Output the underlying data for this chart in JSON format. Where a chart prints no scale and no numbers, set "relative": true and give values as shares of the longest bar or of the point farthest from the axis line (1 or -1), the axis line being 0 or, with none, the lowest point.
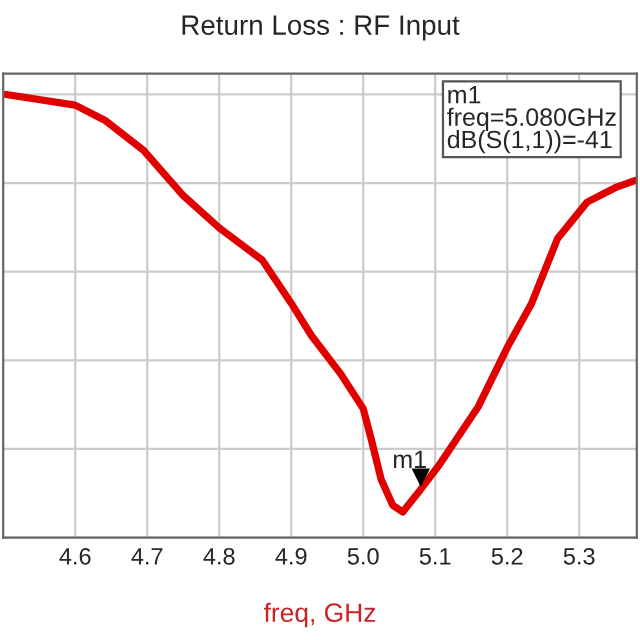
{
  "chart_data": {
    "type": "line",
    "title": "Return Loss : RF Input",
    "xlabel": "freq, GHz",
    "relative": true,
    "x": [
      4.504,
      4.6,
      4.641,
      4.695,
      4.75,
      4.8,
      4.86,
      4.9,
      4.928,
      4.969,
      5.0,
      5.011,
      5.025,
      5.041,
      5.055,
      5.079,
      5.106,
      5.16,
      5.201,
      5.234,
      5.27,
      5.311,
      5.352,
      5.378
    ],
    "series": [
      {
        "color": "#e00000",
        "values": [
          1.0,
          0.976,
          0.942,
          0.874,
          0.772,
          0.699,
          0.626,
          0.529,
          0.456,
          0.369,
          0.291,
          0.223,
          0.131,
          0.073,
          0.058,
          0.107,
          0.165,
          0.296,
          0.432,
          0.529,
          0.675,
          0.757,
          0.791,
          0.806
        ]
      }
    ],
    "xlim": [
      4.5,
      5.38
    ],
    "xticks": [
      4.6,
      4.7,
      4.8,
      4.9,
      {
        "value": 5.0,
        "label": "5.0"
      },
      5.1,
      5.2,
      5.3
    ],
    "annotations": [
      {
        "text": "m1",
        "x": 5.08,
        "y": 0.107
      },
      "m1\nfreq=5.080GHz\ndB(S(1,1))=-41"
    ],
    "grid": true,
    "marker": "none",
    "line_style": "solid"
  }
}
